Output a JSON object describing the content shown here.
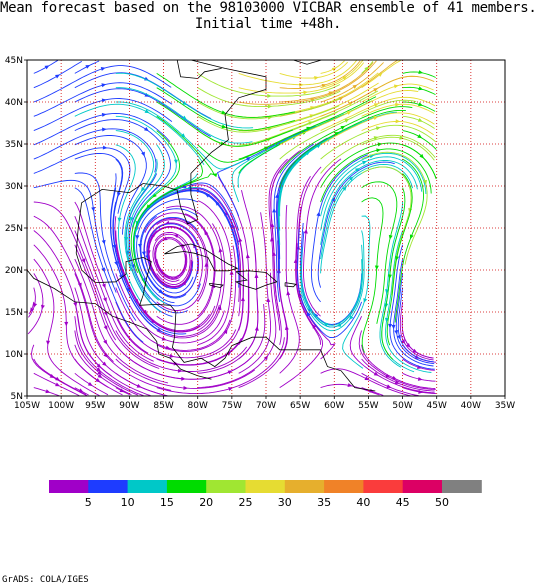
{
  "figure": {
    "title_line1": "Mean forecast based on the 98103000 VICBAR ensemble of 41 members.",
    "title_line2": "Initial time +48h.",
    "credit": "GrADS: COLA/IGES"
  },
  "map": {
    "lon_range": [
      -105,
      -35
    ],
    "lat_range": [
      5,
      45
    ],
    "grid_lines": "dotted-red",
    "x_tick_labels": [
      "105W",
      "100W",
      "95W",
      "90W",
      "85W",
      "80W",
      "75W",
      "70W",
      "65W",
      "60W",
      "55W",
      "50W",
      "45W",
      "40W",
      "35W"
    ],
    "y_tick_labels": [
      "5N",
      "10N",
      "15N",
      "20N",
      "25N",
      "30N",
      "35N",
      "40N",
      "45N"
    ],
    "data_extent_lon": [
      -105,
      -45
    ]
  },
  "colorbar": {
    "colors": [
      "#a000c8",
      "#1e3cff",
      "#00c8c8",
      "#00dc00",
      "#a0e632",
      "#e6dc32",
      "#e6af2d",
      "#f08228",
      "#fa3c3c",
      "#dc0064",
      "#808080"
    ],
    "labels": [
      "5",
      "10",
      "15",
      "20",
      "25",
      "30",
      "35",
      "40",
      "45",
      "50"
    ]
  },
  "chart_data": {
    "type": "streamline-map",
    "field": "wind speed (shaded streamlines)",
    "vortices": [
      {
        "lon": -90,
        "lat": 28,
        "speed_level": 5
      },
      {
        "lon": -86,
        "lat": 19,
        "speed_level": 10
      },
      {
        "lon": -78,
        "lat": 17.5,
        "speed_level": 5
      },
      {
        "lon": -60,
        "lat": 44,
        "speed_level": 15
      },
      {
        "lon": -45,
        "lat": 18,
        "speed_level": 10
      }
    ]
  }
}
